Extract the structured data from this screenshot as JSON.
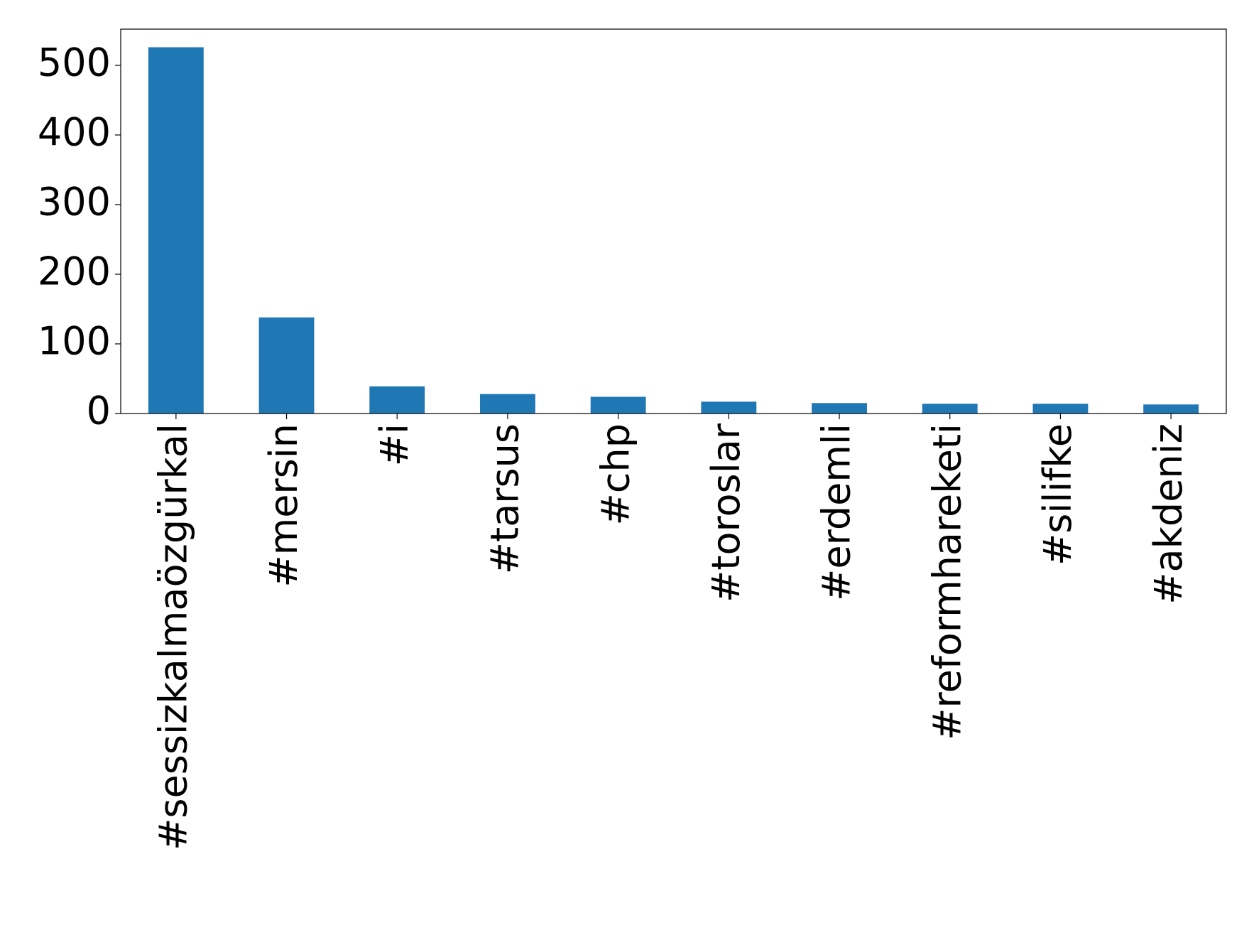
{
  "chart_data": {
    "type": "bar",
    "categories": [
      "#sessizkalmaözgürkal",
      "#mersin",
      "#i",
      "#tarsus",
      "#chp",
      "#toroslar",
      "#erdemli",
      "#reformhareketi",
      "#silifke",
      "#akdeniz"
    ],
    "values": [
      526,
      138,
      39,
      28,
      24,
      17,
      15,
      14,
      14,
      13
    ],
    "color": "#1f77b4",
    "ylim": [
      0,
      552
    ],
    "yticks": [
      0,
      100,
      200,
      300,
      400,
      500
    ],
    "grid": false
  }
}
